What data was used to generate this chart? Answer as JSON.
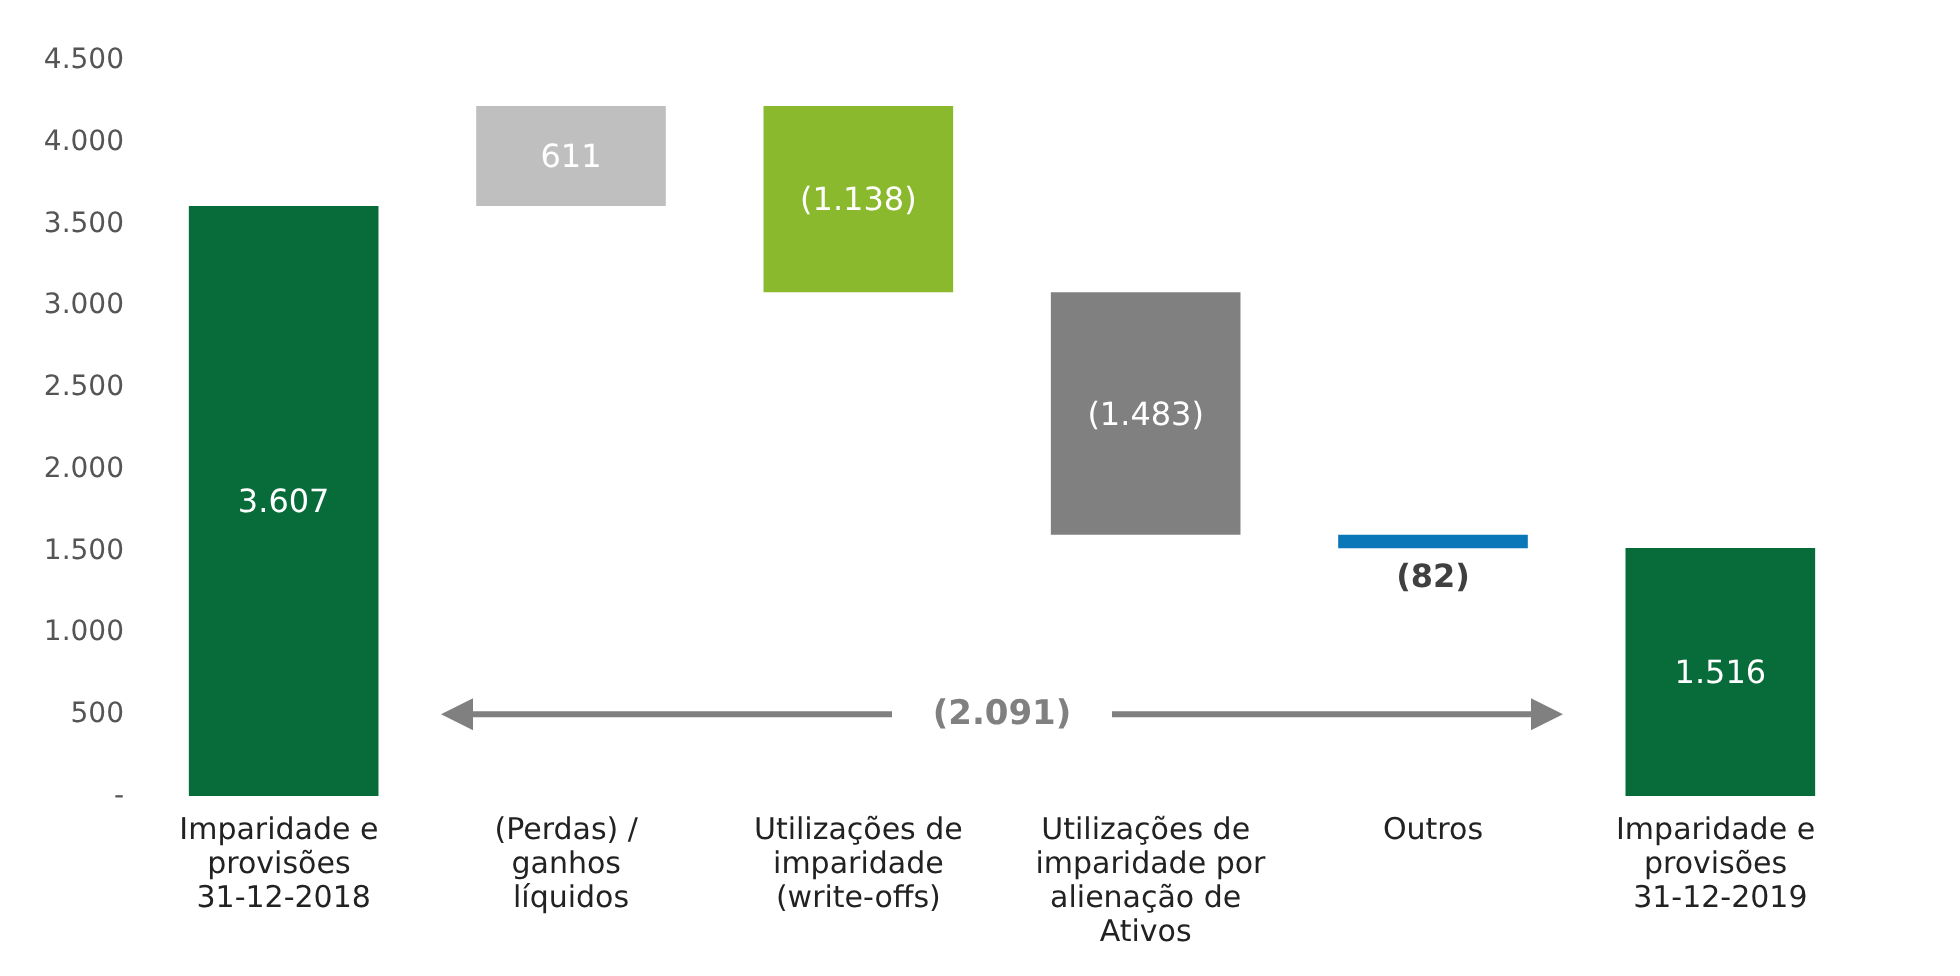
{
  "chart_data": {
    "type": "bar",
    "categories": [
      "Imparidade e provisões 31-12-2018",
      "(Perdas) / ganhos líquidos",
      "Utilizações de imparidade (write-offs)",
      "Utilizações de imparidade por alienação de Ativos",
      "Outros",
      "Imparidade e provisões 31-12-2019"
    ],
    "values": [
      3607,
      611,
      -1138,
      -1483,
      -82,
      1516
    ],
    "base": [
      0,
      3607,
      4218,
      3080,
      1597,
      0
    ],
    "value_labels": [
      "3.607",
      "611",
      "(1.138)",
      "(1.483)",
      "(82)",
      "1.516"
    ],
    "colors": [
      "#076b3a",
      "#bfbfbf",
      "#8ab92d",
      "#808080",
      "#0a77b8",
      "#076b3a"
    ],
    "ylim": [
      0,
      4500
    ],
    "yticks": [
      {
        "value": 0,
        "label": "-"
      },
      {
        "value": 500,
        "label": "500"
      },
      {
        "value": 1000,
        "label": "1.000"
      },
      {
        "value": 1500,
        "label": "1.500"
      },
      {
        "value": 2000,
        "label": "2.000"
      },
      {
        "value": 2500,
        "label": "2.500"
      },
      {
        "value": 3000,
        "label": "3.000"
      },
      {
        "value": 3500,
        "label": "3.500"
      },
      {
        "value": 4000,
        "label": "4.000"
      },
      {
        "value": 4500,
        "label": "4.500"
      }
    ],
    "annotations": [
      "(2.091)"
    ],
    "grid": false
  }
}
